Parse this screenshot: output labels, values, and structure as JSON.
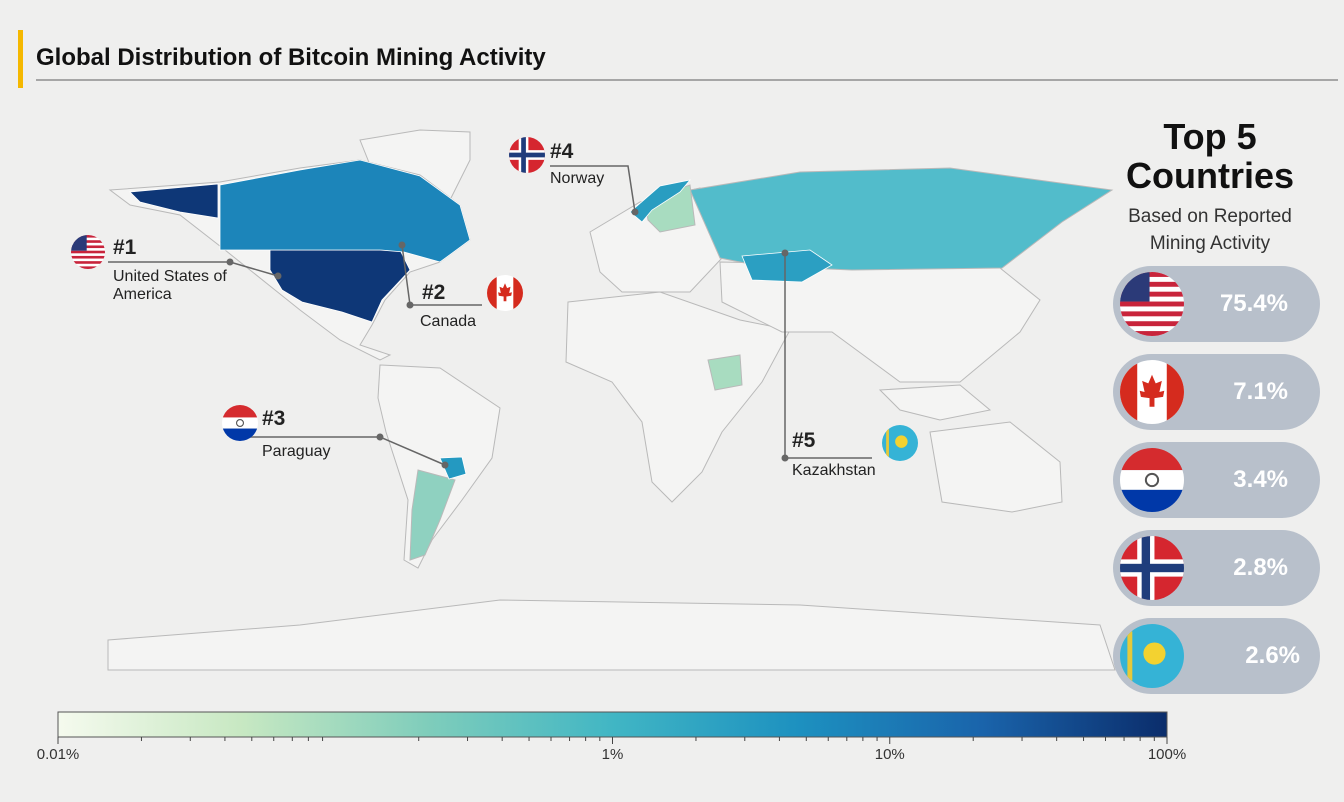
{
  "header": {
    "title": "Global Distribution of Bitcoin Mining Activity"
  },
  "panel": {
    "title": "Top 5 Countries",
    "subtitle": "Based on Reported Mining Activity"
  },
  "countries": [
    {
      "rank": "#1",
      "name": "United States of America",
      "share": 75.4,
      "share_label": "75.4%"
    },
    {
      "rank": "#2",
      "name": "Canada",
      "share": 7.1,
      "share_label": "7.1%"
    },
    {
      "rank": "#3",
      "name": "Paraguay",
      "share": 3.4,
      "share_label": "3.4%"
    },
    {
      "rank": "#4",
      "name": "Norway",
      "share": 2.8,
      "share_label": "2.8%"
    },
    {
      "rank": "#5",
      "name": "Kazakhstan",
      "share": 2.6,
      "share_label": "2.6%"
    }
  ],
  "colorbar": {
    "scale": "log",
    "lim": [
      0.01,
      100
    ],
    "ticks": [
      {
        "value": 0.01,
        "label": "0.01%"
      },
      {
        "value": 1,
        "label": "1%"
      },
      {
        "value": 10,
        "label": "10%"
      },
      {
        "value": 100,
        "label": "100%"
      }
    ],
    "colors": [
      "#f5faee",
      "#c7e8c2",
      "#7fcdbb",
      "#41b6c4",
      "#1d91c0",
      "#1a64ab",
      "#0b2d6b"
    ]
  }
}
